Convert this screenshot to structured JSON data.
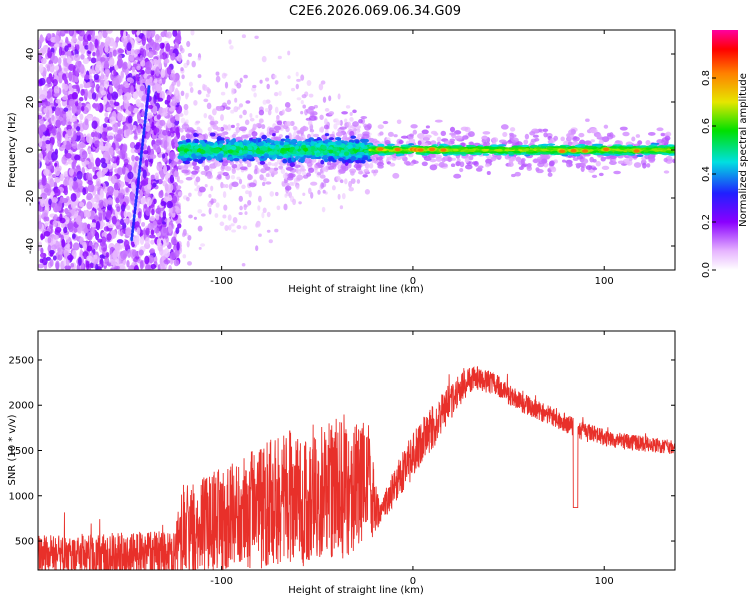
{
  "title": "C2E6.2026.069.06.34.G09",
  "colors": {
    "snr_line": "#e8302a",
    "axis": "#000000",
    "background": "#ffffff"
  },
  "chart_data": [
    {
      "type": "heatmap",
      "name": "spectrogram",
      "xlabel": "Height of straight line (km)",
      "ylabel": "Frequency (Hz)",
      "xlim": [
        -196,
        137
      ],
      "ylim": [
        -50,
        50
      ],
      "xticks": [
        -100,
        0,
        100
      ],
      "yticks": [
        -40,
        -20,
        0,
        20,
        40
      ],
      "colorbar": {
        "label": "Normalized spectral amplitude",
        "range": [
          0.0,
          1.0
        ],
        "ticks": [
          0.0,
          0.2,
          0.4,
          0.6,
          0.8
        ],
        "tick_labels": [
          "0.0",
          "0.2",
          "0.4",
          "0.6",
          "0.8"
        ],
        "colormap": "rainbow (white-violet-blue-cyan-green-yellow-orange-red-magenta)",
        "placement": "right"
      },
      "features": {
        "noise_region_x": [
          -196,
          -122
        ],
        "broad_band_x": [
          -122,
          -22
        ],
        "broad_band_freq_halfwidth": 4,
        "narrow_band_x": [
          -22,
          137
        ],
        "narrow_band_freq_halfwidth": 2,
        "diagonal_streak": {
          "x": [
            -147,
            -138
          ],
          "freq": [
            -37,
            26
          ]
        }
      }
    },
    {
      "type": "line",
      "name": "snr",
      "xlabel": "Height of straight line (km)",
      "ylabel": "SNR (10 * v/v)",
      "xlim": [
        -196,
        137
      ],
      "ylim": [
        180,
        2820
      ],
      "xticks": [
        -100,
        0,
        100
      ],
      "yticks": [
        500,
        1000,
        1500,
        2000,
        2500
      ],
      "grid": false,
      "envelope": {
        "x": [
          -196,
          -150,
          -125,
          -120,
          -90,
          -70,
          -40,
          -22,
          -18,
          0,
          10,
          20,
          28,
          35,
          45,
          55,
          70,
          90,
          110,
          137
        ],
        "mean": [
          330,
          350,
          360,
          600,
          800,
          950,
          1050,
          1150,
          800,
          1450,
          1750,
          2050,
          2250,
          2300,
          2200,
          2050,
          1900,
          1700,
          1600,
          1530
        ],
        "amplitude": [
          230,
          250,
          250,
          520,
          620,
          750,
          800,
          650,
          150,
          260,
          250,
          200,
          160,
          140,
          120,
          110,
          110,
          100,
          90,
          80
        ]
      }
    }
  ]
}
